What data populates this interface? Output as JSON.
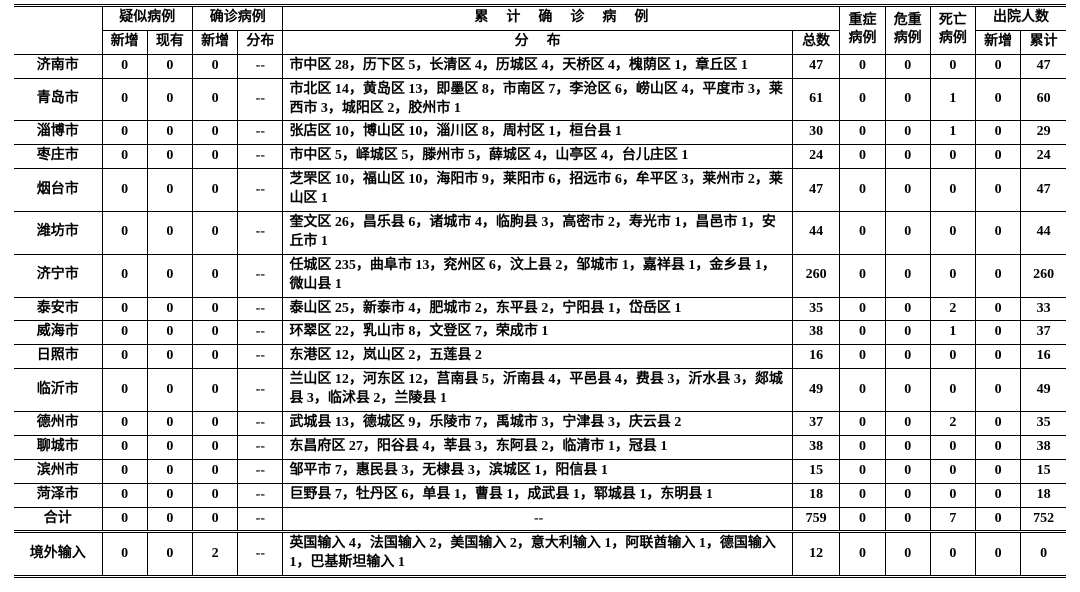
{
  "headers": {
    "suspected": "疑似病例",
    "confirmed": "确诊病例",
    "cumulative": "累计确诊病例",
    "new": "新增",
    "exist": "现有",
    "dist": "分布",
    "distribution": "分布",
    "total": "总数",
    "severe": "重症病例",
    "critical": "危重病例",
    "death": "死亡病例",
    "discharged": "出院人数",
    "cum": "累计"
  },
  "rows": [
    {
      "city": "济南市",
      "sn": 0,
      "se": 0,
      "cn": 0,
      "cd": "--",
      "dist": "市中区 28，历下区 5，长清区 4，历城区 4，天桥区 4，槐荫区 1，章丘区 1",
      "tot": 47,
      "sv": 0,
      "cr": 0,
      "de": 0,
      "dn": 0,
      "dc": 47
    },
    {
      "city": "青岛市",
      "sn": 0,
      "se": 0,
      "cn": 0,
      "cd": "--",
      "dist": "市北区 14，黄岛区 13，即墨区 8，市南区 7，李沧区 6，崂山区 4，平度市 3，莱西市 3，城阳区 2，胶州市 1",
      "tot": 61,
      "sv": 0,
      "cr": 0,
      "de": 1,
      "dn": 0,
      "dc": 60
    },
    {
      "city": "淄博市",
      "sn": 0,
      "se": 0,
      "cn": 0,
      "cd": "--",
      "dist": "张店区 10，博山区 10，淄川区 8，周村区 1，桓台县 1",
      "tot": 30,
      "sv": 0,
      "cr": 0,
      "de": 1,
      "dn": 0,
      "dc": 29
    },
    {
      "city": "枣庄市",
      "sn": 0,
      "se": 0,
      "cn": 0,
      "cd": "--",
      "dist": "市中区 5，峄城区 5，滕州市 5，薛城区 4，山亭区 4，台儿庄区 1",
      "tot": 24,
      "sv": 0,
      "cr": 0,
      "de": 0,
      "dn": 0,
      "dc": 24
    },
    {
      "city": "烟台市",
      "sn": 0,
      "se": 0,
      "cn": 0,
      "cd": "--",
      "dist": "芝罘区 10，福山区 10，海阳市 9，莱阳市 6，招远市 6，牟平区 3，莱州市 2，莱山区 1",
      "tot": 47,
      "sv": 0,
      "cr": 0,
      "de": 0,
      "dn": 0,
      "dc": 47
    },
    {
      "city": "潍坊市",
      "sn": 0,
      "se": 0,
      "cn": 0,
      "cd": "--",
      "dist": "奎文区 26，昌乐县 6，诸城市 4，临朐县 3，高密市 2，寿光市 1，昌邑市 1，安丘市 1",
      "tot": 44,
      "sv": 0,
      "cr": 0,
      "de": 0,
      "dn": 0,
      "dc": 44
    },
    {
      "city": "济宁市",
      "sn": 0,
      "se": 0,
      "cn": 0,
      "cd": "--",
      "dist": "任城区 235，曲阜市 13，兖州区 6，汶上县 2，邹城市 1，嘉祥县 1，金乡县 1，微山县 1",
      "tot": 260,
      "sv": 0,
      "cr": 0,
      "de": 0,
      "dn": 0,
      "dc": 260
    },
    {
      "city": "泰安市",
      "sn": 0,
      "se": 0,
      "cn": 0,
      "cd": "--",
      "dist": "泰山区 25，新泰市 4，肥城市 2，东平县 2，宁阳县 1，岱岳区 1",
      "tot": 35,
      "sv": 0,
      "cr": 0,
      "de": 2,
      "dn": 0,
      "dc": 33
    },
    {
      "city": "威海市",
      "sn": 0,
      "se": 0,
      "cn": 0,
      "cd": "--",
      "dist": "环翠区 22，乳山市 8，文登区 7，荣成市 1",
      "tot": 38,
      "sv": 0,
      "cr": 0,
      "de": 1,
      "dn": 0,
      "dc": 37
    },
    {
      "city": "日照市",
      "sn": 0,
      "se": 0,
      "cn": 0,
      "cd": "--",
      "dist": "东港区 12，岚山区 2，五莲县 2",
      "tot": 16,
      "sv": 0,
      "cr": 0,
      "de": 0,
      "dn": 0,
      "dc": 16
    },
    {
      "city": "临沂市",
      "sn": 0,
      "se": 0,
      "cn": 0,
      "cd": "--",
      "dist": "兰山区 12，河东区 12，莒南县 5，沂南县 4，平邑县 4，费县 3，沂水县 3，郯城县 3，临沭县 2，兰陵县 1",
      "tot": 49,
      "sv": 0,
      "cr": 0,
      "de": 0,
      "dn": 0,
      "dc": 49
    },
    {
      "city": "德州市",
      "sn": 0,
      "se": 0,
      "cn": 0,
      "cd": "--",
      "dist": "武城县 13，德城区 9，乐陵市 7，禹城市 3，宁津县 3，庆云县 2",
      "tot": 37,
      "sv": 0,
      "cr": 0,
      "de": 2,
      "dn": 0,
      "dc": 35
    },
    {
      "city": "聊城市",
      "sn": 0,
      "se": 0,
      "cn": 0,
      "cd": "--",
      "dist": "东昌府区 27，阳谷县 4，莘县 3，东阿县 2，临清市 1，冠县 1",
      "tot": 38,
      "sv": 0,
      "cr": 0,
      "de": 0,
      "dn": 0,
      "dc": 38
    },
    {
      "city": "滨州市",
      "sn": 0,
      "se": 0,
      "cn": 0,
      "cd": "--",
      "dist": "邹平市 7，惠民县 3，无棣县 3，滨城区 1，阳信县 1",
      "tot": 15,
      "sv": 0,
      "cr": 0,
      "de": 0,
      "dn": 0,
      "dc": 15
    },
    {
      "city": "菏泽市",
      "sn": 0,
      "se": 0,
      "cn": 0,
      "cd": "--",
      "dist": "巨野县 7，牡丹区 6，单县 1，曹县 1，成武县 1，郓城县 1，东明县 1",
      "tot": 18,
      "sv": 0,
      "cr": 0,
      "de": 0,
      "dn": 0,
      "dc": 18
    }
  ],
  "total": {
    "city": "合计",
    "sn": 0,
    "se": 0,
    "cn": 0,
    "cd": "--",
    "dist": "--",
    "tot": 759,
    "sv": 0,
    "cr": 0,
    "de": 7,
    "dn": 0,
    "dc": 752
  },
  "import": {
    "city": "境外输入",
    "sn": 0,
    "se": 0,
    "cn": 2,
    "cd": "--",
    "dist": "英国输入 4，法国输入 2，美国输入 2，意大利输入 1，阿联酋输入 1，德国输入 1，巴基斯坦输入 1",
    "tot": 12,
    "sv": 0,
    "cr": 0,
    "de": 0,
    "dn": 0,
    "dc": 0
  }
}
